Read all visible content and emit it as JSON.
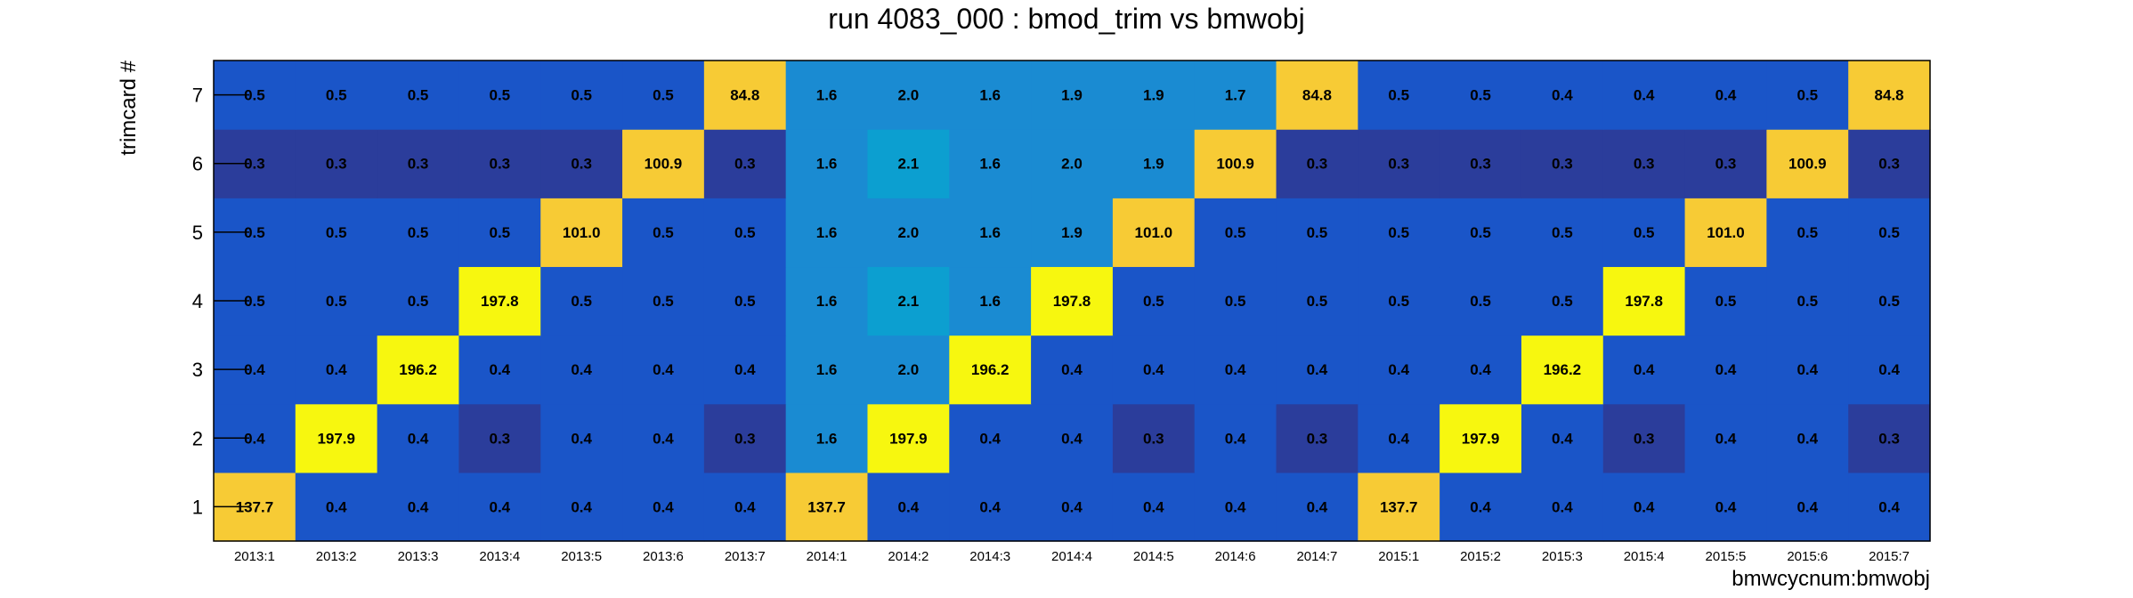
{
  "chart_data": {
    "type": "heatmap",
    "title": "run 4083_000 : bmod_trim vs bmwobj",
    "xlabel": "bmwcycnum:bmwobj",
    "ylabel": "trimcard #",
    "x_categories": [
      "2013:1",
      "2013:2",
      "2013:3",
      "2013:4",
      "2013:5",
      "2013:6",
      "2013:7",
      "2014:1",
      "2014:2",
      "2014:3",
      "2014:4",
      "2014:5",
      "2014:6",
      "2014:7",
      "2015:1",
      "2015:2",
      "2015:3",
      "2015:4",
      "2015:5",
      "2015:6",
      "2015:7"
    ],
    "y_categories": [
      "1",
      "2",
      "3",
      "4",
      "5",
      "6",
      "7"
    ],
    "values": [
      [
        "137.7",
        "0.4",
        "0.4",
        "0.4",
        "0.4",
        "0.4",
        "0.4",
        "137.7",
        "0.4",
        "0.4",
        "0.4",
        "0.4",
        "0.4",
        "0.4",
        "137.7",
        "0.4",
        "0.4",
        "0.4",
        "0.4",
        "0.4",
        "0.4"
      ],
      [
        "0.4",
        "197.9",
        "0.4",
        "0.3",
        "0.4",
        "0.4",
        "0.3",
        "1.6",
        "197.9",
        "0.4",
        "0.4",
        "0.3",
        "0.4",
        "0.3",
        "0.4",
        "197.9",
        "0.4",
        "0.3",
        "0.4",
        "0.4",
        "0.3"
      ],
      [
        "0.4",
        "0.4",
        "196.2",
        "0.4",
        "0.4",
        "0.4",
        "0.4",
        "1.6",
        "2.0",
        "196.2",
        "0.4",
        "0.4",
        "0.4",
        "0.4",
        "0.4",
        "0.4",
        "196.2",
        "0.4",
        "0.4",
        "0.4",
        "0.4"
      ],
      [
        "0.5",
        "0.5",
        "0.5",
        "197.8",
        "0.5",
        "0.5",
        "0.5",
        "1.6",
        "2.1",
        "1.6",
        "197.8",
        "0.5",
        "0.5",
        "0.5",
        "0.5",
        "0.5",
        "0.5",
        "197.8",
        "0.5",
        "0.5",
        "0.5"
      ],
      [
        "0.5",
        "0.5",
        "0.5",
        "0.5",
        "101.0",
        "0.5",
        "0.5",
        "1.6",
        "2.0",
        "1.6",
        "1.9",
        "101.0",
        "0.5",
        "0.5",
        "0.5",
        "0.5",
        "0.5",
        "0.5",
        "101.0",
        "0.5",
        "0.5"
      ],
      [
        "0.3",
        "0.3",
        "0.3",
        "0.3",
        "0.3",
        "100.9",
        "0.3",
        "1.6",
        "2.1",
        "1.6",
        "2.0",
        "1.9",
        "100.9",
        "0.3",
        "0.3",
        "0.3",
        "0.3",
        "0.3",
        "0.3",
        "100.9",
        "0.3"
      ],
      [
        "0.5",
        "0.5",
        "0.5",
        "0.5",
        "0.5",
        "0.5",
        "84.8",
        "1.6",
        "2.0",
        "1.6",
        "1.9",
        "1.9",
        "1.7",
        "84.8",
        "0.5",
        "0.5",
        "0.4",
        "0.4",
        "0.4",
        "0.5",
        "84.8"
      ]
    ],
    "colors": {
      "low_dark": "#2b3d9b",
      "low": "#1a55c8",
      "mid": "#1a8bd2",
      "mid_high": "#0c9fd0",
      "high_gold": "#f7cb35",
      "high_yellow": "#f7f70f"
    },
    "grid": false,
    "legend": "none"
  }
}
